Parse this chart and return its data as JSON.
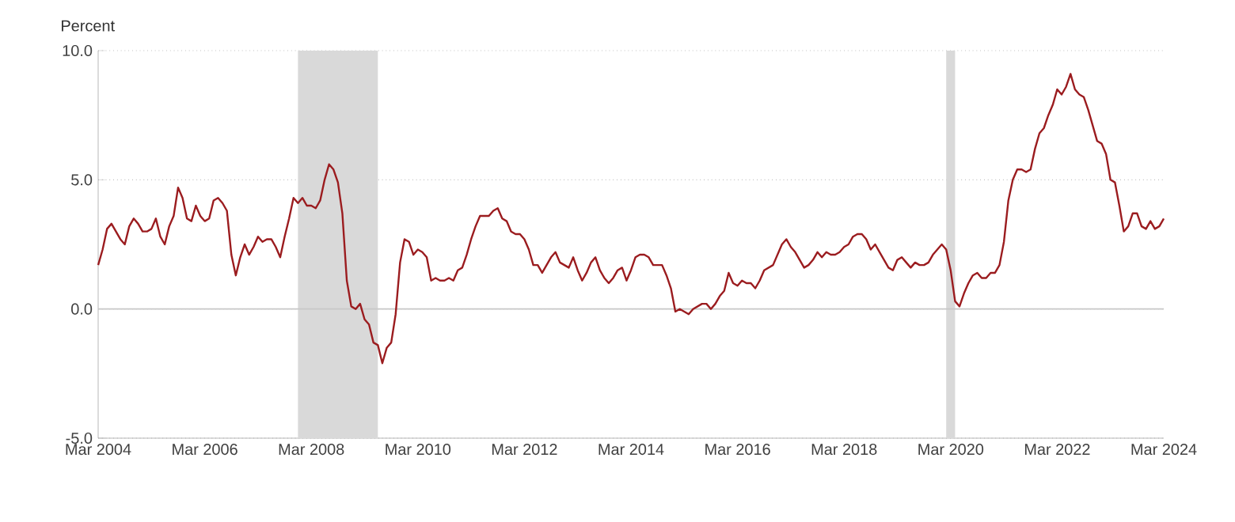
{
  "chart_data": {
    "type": "line",
    "ylabel": "Percent",
    "xlim": [
      "2004-03",
      "2024-03"
    ],
    "xticks": [
      {
        "value": "2004-03",
        "label": "Mar 2004"
      },
      {
        "value": "2006-03",
        "label": "Mar 2006"
      },
      {
        "value": "2008-03",
        "label": "Mar 2008"
      },
      {
        "value": "2010-03",
        "label": "Mar 2010"
      },
      {
        "value": "2012-03",
        "label": "Mar 2012"
      },
      {
        "value": "2014-03",
        "label": "Mar 2014"
      },
      {
        "value": "2016-03",
        "label": "Mar 2016"
      },
      {
        "value": "2018-03",
        "label": "Mar 2018"
      },
      {
        "value": "2020-03",
        "label": "Mar 2020"
      },
      {
        "value": "2022-03",
        "label": "Mar 2022"
      },
      {
        "value": "2024-03",
        "label": "Mar 2024"
      }
    ],
    "ylim": [
      -5,
      10
    ],
    "yticks": [
      {
        "value": -5,
        "label": "-5.0"
      },
      {
        "value": 0,
        "label": "0.0"
      },
      {
        "value": 5,
        "label": "5.0"
      },
      {
        "value": 10,
        "label": "10.0"
      }
    ],
    "grid": "y",
    "bands": [
      {
        "axis": "x",
        "from": "2007-12",
        "to": "2009-06",
        "color": "#d9d9d9"
      },
      {
        "axis": "x",
        "from": "2020-02",
        "to": "2020-04",
        "color": "#d9d9d9"
      }
    ],
    "ref_lines": [
      {
        "axis": "y",
        "value": 0,
        "color": "#c8c8c8"
      }
    ],
    "series": [
      {
        "color": "#9b1c1f",
        "x": [
          "2004-03",
          "2004-04",
          "2004-05",
          "2004-06",
          "2004-07",
          "2004-08",
          "2004-09",
          "2004-10",
          "2004-11",
          "2004-12",
          "2005-01",
          "2005-02",
          "2005-03",
          "2005-04",
          "2005-05",
          "2005-06",
          "2005-07",
          "2005-08",
          "2005-09",
          "2005-10",
          "2005-11",
          "2005-12",
          "2006-01",
          "2006-02",
          "2006-03",
          "2006-04",
          "2006-05",
          "2006-06",
          "2006-07",
          "2006-08",
          "2006-09",
          "2006-10",
          "2006-11",
          "2006-12",
          "2007-01",
          "2007-02",
          "2007-03",
          "2007-04",
          "2007-05",
          "2007-06",
          "2007-07",
          "2007-08",
          "2007-09",
          "2007-10",
          "2007-11",
          "2007-12",
          "2008-01",
          "2008-02",
          "2008-03",
          "2008-04",
          "2008-05",
          "2008-06",
          "2008-07",
          "2008-08",
          "2008-09",
          "2008-10",
          "2008-11",
          "2008-12",
          "2009-01",
          "2009-02",
          "2009-03",
          "2009-04",
          "2009-05",
          "2009-06",
          "2009-07",
          "2009-08",
          "2009-09",
          "2009-10",
          "2009-11",
          "2009-12",
          "2010-01",
          "2010-02",
          "2010-03",
          "2010-04",
          "2010-05",
          "2010-06",
          "2010-07",
          "2010-08",
          "2010-09",
          "2010-10",
          "2010-11",
          "2010-12",
          "2011-01",
          "2011-02",
          "2011-03",
          "2011-04",
          "2011-05",
          "2011-06",
          "2011-07",
          "2011-08",
          "2011-09",
          "2011-10",
          "2011-11",
          "2011-12",
          "2012-01",
          "2012-02",
          "2012-03",
          "2012-04",
          "2012-05",
          "2012-06",
          "2012-07",
          "2012-08",
          "2012-09",
          "2012-10",
          "2012-11",
          "2012-12",
          "2013-01",
          "2013-02",
          "2013-03",
          "2013-04",
          "2013-05",
          "2013-06",
          "2013-07",
          "2013-08",
          "2013-09",
          "2013-10",
          "2013-11",
          "2013-12",
          "2014-01",
          "2014-02",
          "2014-03",
          "2014-04",
          "2014-05",
          "2014-06",
          "2014-07",
          "2014-08",
          "2014-09",
          "2014-10",
          "2014-11",
          "2014-12",
          "2015-01",
          "2015-02",
          "2015-03",
          "2015-04",
          "2015-05",
          "2015-06",
          "2015-07",
          "2015-08",
          "2015-09",
          "2015-10",
          "2015-11",
          "2015-12",
          "2016-01",
          "2016-02",
          "2016-03",
          "2016-04",
          "2016-05",
          "2016-06",
          "2016-07",
          "2016-08",
          "2016-09",
          "2016-10",
          "2016-11",
          "2016-12",
          "2017-01",
          "2017-02",
          "2017-03",
          "2017-04",
          "2017-05",
          "2017-06",
          "2017-07",
          "2017-08",
          "2017-09",
          "2017-10",
          "2017-11",
          "2017-12",
          "2018-01",
          "2018-02",
          "2018-03",
          "2018-04",
          "2018-05",
          "2018-06",
          "2018-07",
          "2018-08",
          "2018-09",
          "2018-10",
          "2018-11",
          "2018-12",
          "2019-01",
          "2019-02",
          "2019-03",
          "2019-04",
          "2019-05",
          "2019-06",
          "2019-07",
          "2019-08",
          "2019-09",
          "2019-10",
          "2019-11",
          "2019-12",
          "2020-01",
          "2020-02",
          "2020-03",
          "2020-04",
          "2020-05",
          "2020-06",
          "2020-07",
          "2020-08",
          "2020-09",
          "2020-10",
          "2020-11",
          "2020-12",
          "2021-01",
          "2021-02",
          "2021-03",
          "2021-04",
          "2021-05",
          "2021-06",
          "2021-07",
          "2021-08",
          "2021-09",
          "2021-10",
          "2021-11",
          "2021-12",
          "2022-01",
          "2022-02",
          "2022-03",
          "2022-04",
          "2022-05",
          "2022-06",
          "2022-07",
          "2022-08",
          "2022-09",
          "2022-10",
          "2022-11",
          "2022-12",
          "2023-01",
          "2023-02",
          "2023-03",
          "2023-04",
          "2023-05",
          "2023-06",
          "2023-07",
          "2023-08",
          "2023-09",
          "2023-10",
          "2023-11",
          "2023-12",
          "2024-01",
          "2024-02",
          "2024-03"
        ],
        "values": [
          1.7,
          2.3,
          3.1,
          3.3,
          3.0,
          2.7,
          2.5,
          3.2,
          3.5,
          3.3,
          3.0,
          3.0,
          3.1,
          3.5,
          2.8,
          2.5,
          3.2,
          3.6,
          4.7,
          4.3,
          3.5,
          3.4,
          4.0,
          3.6,
          3.4,
          3.5,
          4.2,
          4.3,
          4.1,
          3.8,
          2.1,
          1.3,
          2.0,
          2.5,
          2.1,
          2.4,
          2.8,
          2.6,
          2.7,
          2.7,
          2.4,
          2.0,
          2.8,
          3.5,
          4.3,
          4.1,
          4.3,
          4.0,
          4.0,
          3.9,
          4.2,
          5.0,
          5.6,
          5.4,
          4.9,
          3.7,
          1.1,
          0.1,
          0.0,
          0.2,
          -0.4,
          -0.6,
          -1.3,
          -1.4,
          -2.1,
          -1.5,
          -1.3,
          -0.2,
          1.8,
          2.7,
          2.6,
          2.1,
          2.3,
          2.2,
          2.0,
          1.1,
          1.2,
          1.1,
          1.1,
          1.2,
          1.1,
          1.5,
          1.6,
          2.1,
          2.7,
          3.2,
          3.6,
          3.6,
          3.6,
          3.8,
          3.9,
          3.5,
          3.4,
          3.0,
          2.9,
          2.9,
          2.7,
          2.3,
          1.7,
          1.7,
          1.4,
          1.7,
          2.0,
          2.2,
          1.8,
          1.7,
          1.6,
          2.0,
          1.5,
          1.1,
          1.4,
          1.8,
          2.0,
          1.5,
          1.2,
          1.0,
          1.2,
          1.5,
          1.6,
          1.1,
          1.5,
          2.0,
          2.1,
          2.1,
          2.0,
          1.7,
          1.7,
          1.7,
          1.3,
          0.8,
          -0.1,
          0.0,
          -0.1,
          -0.2,
          0.0,
          0.1,
          0.2,
          0.2,
          0.0,
          0.2,
          0.5,
          0.7,
          1.4,
          1.0,
          0.9,
          1.1,
          1.0,
          1.0,
          0.8,
          1.1,
          1.5,
          1.6,
          1.7,
          2.1,
          2.5,
          2.7,
          2.4,
          2.2,
          1.9,
          1.6,
          1.7,
          1.9,
          2.2,
          2.0,
          2.2,
          2.1,
          2.1,
          2.2,
          2.4,
          2.5,
          2.8,
          2.9,
          2.9,
          2.7,
          2.3,
          2.5,
          2.2,
          1.9,
          1.6,
          1.5,
          1.9,
          2.0,
          1.8,
          1.6,
          1.8,
          1.7,
          1.7,
          1.8,
          2.1,
          2.3,
          2.5,
          2.3,
          1.5,
          0.3,
          0.1,
          0.6,
          1.0,
          1.3,
          1.4,
          1.2,
          1.2,
          1.4,
          1.4,
          1.7,
          2.6,
          4.2,
          5.0,
          5.4,
          5.4,
          5.3,
          5.4,
          6.2,
          6.8,
          7.0,
          7.5,
          7.9,
          8.5,
          8.3,
          8.6,
          9.1,
          8.5,
          8.3,
          8.2,
          7.7,
          7.1,
          6.5,
          6.4,
          6.0,
          5.0,
          4.9,
          4.0,
          3.0,
          3.2,
          3.7,
          3.7,
          3.2,
          3.1,
          3.4,
          3.1,
          3.2,
          3.5
        ]
      }
    ]
  }
}
